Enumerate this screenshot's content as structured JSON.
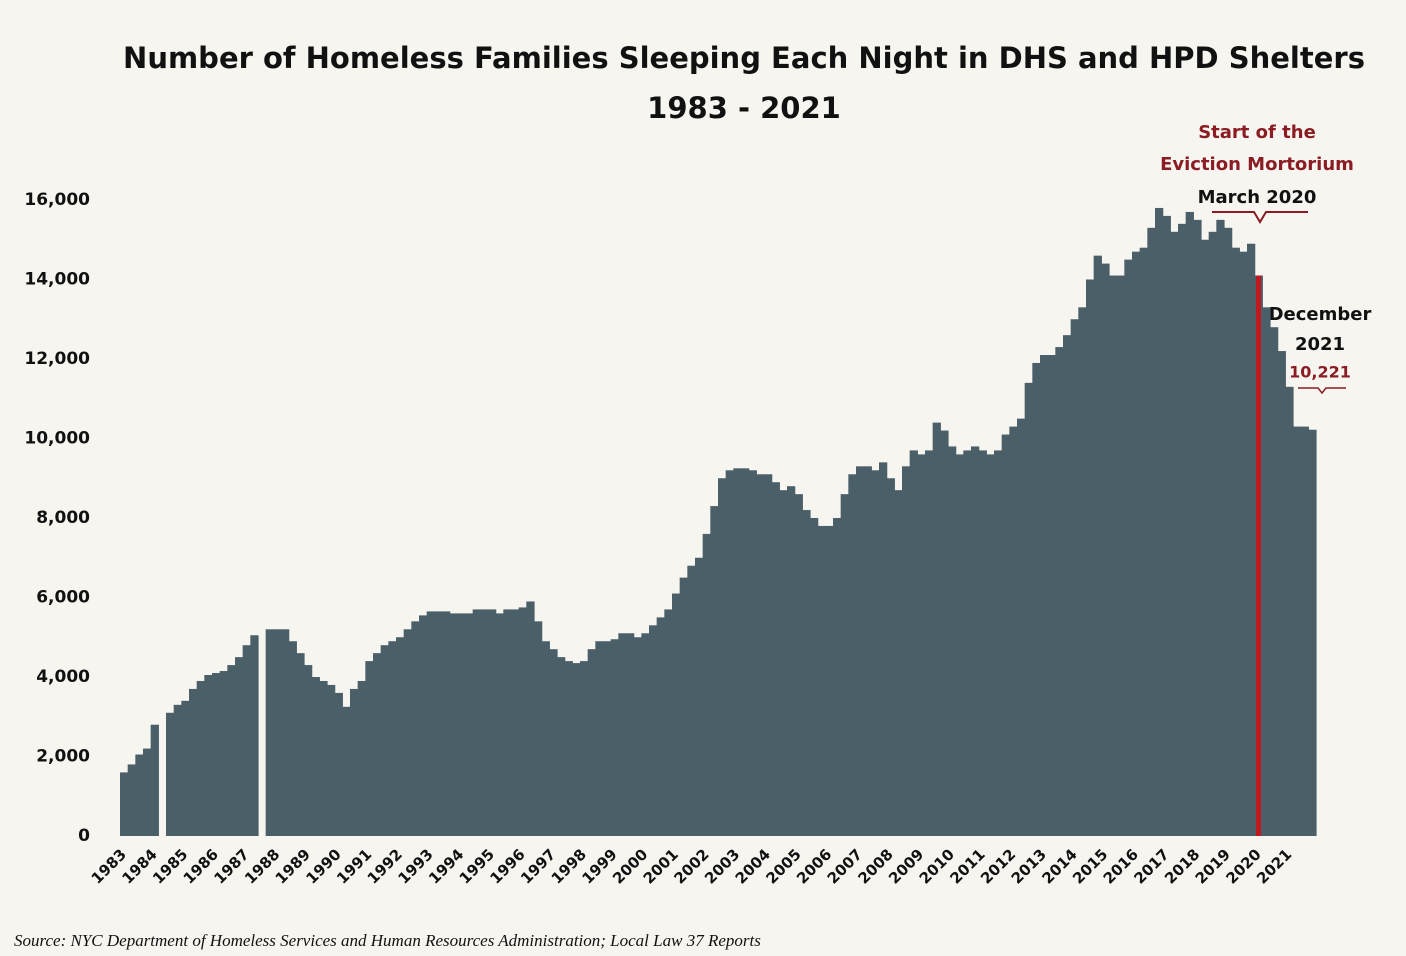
{
  "chart_data": {
    "type": "bar",
    "title": "Number of Homeless Families Sleeping Each Night in DHS and HPD Shelters",
    "subtitle": "1983 - 2021",
    "source": "Source:  NYC Department of Homeless Services and Human Resources Administration;  Local Law 37 Reports",
    "color": "#4b5f69",
    "highlight_index": 148,
    "highlight_color": "#c0181e",
    "categories": [
      "1983",
      null,
      null,
      null,
      "1984",
      null,
      null,
      null,
      "1985",
      null,
      null,
      null,
      "1986",
      null,
      null,
      null,
      "1987",
      null,
      null,
      null,
      "1988",
      null,
      null,
      null,
      "1989",
      null,
      null,
      null,
      "1990",
      null,
      null,
      null,
      "1991",
      null,
      null,
      null,
      "1992",
      null,
      null,
      null,
      "1993",
      null,
      null,
      null,
      "1994",
      null,
      null,
      null,
      "1995",
      null,
      null,
      null,
      "1996",
      null,
      null,
      null,
      "1997",
      null,
      null,
      null,
      "1998",
      null,
      null,
      null,
      "1999",
      null,
      null,
      null,
      "2000",
      null,
      null,
      null,
      "2001",
      null,
      null,
      null,
      "2002",
      null,
      null,
      null,
      "2003",
      null,
      null,
      null,
      "2004",
      null,
      null,
      null,
      "2005",
      null,
      null,
      null,
      "2006",
      null,
      null,
      null,
      "2007",
      null,
      null,
      null,
      "2008",
      null,
      null,
      null,
      "2009",
      null,
      null,
      null,
      "2010",
      null,
      null,
      null,
      "2011",
      null,
      null,
      null,
      "2012",
      null,
      null,
      null,
      "2013",
      null,
      null,
      null,
      "2014",
      null,
      null,
      null,
      "2015",
      null,
      null,
      null,
      "2016",
      null,
      null,
      null,
      "2017",
      null,
      null,
      null,
      "2018",
      null,
      null,
      null,
      "2019",
      null,
      null,
      null,
      "2020",
      null,
      null,
      null,
      "2021",
      null,
      null,
      null
    ],
    "values": [
      1600,
      1800,
      2050,
      2200,
      2800,
      null,
      3100,
      3300,
      3400,
      3700,
      3900,
      4050,
      4100,
      4150,
      4300,
      4500,
      4800,
      5050,
      null,
      5200,
      5200,
      5200,
      4900,
      4600,
      4300,
      4000,
      3900,
      3800,
      3600,
      3250,
      3700,
      3900,
      4400,
      4600,
      4800,
      4900,
      5000,
      5200,
      5400,
      5550,
      5650,
      5650,
      5650,
      5600,
      5600,
      5600,
      5700,
      5700,
      5700,
      5600,
      5700,
      5700,
      5750,
      5900,
      5400,
      4900,
      4700,
      4500,
      4400,
      4350,
      4400,
      4700,
      4900,
      4900,
      4950,
      5100,
      5100,
      5000,
      5100,
      5300,
      5500,
      5700,
      6100,
      6500,
      6800,
      7000,
      7600,
      8300,
      9000,
      9200,
      9250,
      9250,
      9200,
      9100,
      9100,
      8900,
      8700,
      8800,
      8600,
      8200,
      8000,
      7800,
      7800,
      8000,
      8600,
      9100,
      9300,
      9300,
      9200,
      9400,
      9000,
      8700,
      9300,
      9700,
      9600,
      9700,
      10400,
      10200,
      9800,
      9600,
      9700,
      9800,
      9700,
      9600,
      9700,
      10100,
      10300,
      10500,
      11400,
      11900,
      12100,
      12100,
      12300,
      12600,
      13000,
      13300,
      14000,
      14600,
      14400,
      14100,
      14100,
      14500,
      14700,
      14800,
      15300,
      15800,
      15600,
      15200,
      15400,
      15700,
      15500,
      15000,
      15200,
      15500,
      15300,
      14800,
      14700,
      14900,
      14100,
      13300,
      12800,
      12200,
      11300,
      10300,
      10300,
      10221
    ],
    "ylim": [
      0,
      16000
    ],
    "yticks": [
      0,
      {
        "value": 2000,
        "label": "2,000"
      },
      {
        "value": 4000,
        "label": "4,000"
      },
      {
        "value": 6000,
        "label": "6,000"
      },
      {
        "value": 8000,
        "label": "8,000"
      },
      {
        "value": 10000,
        "label": "10,000"
      },
      {
        "value": 12000,
        "label": "12,000"
      },
      {
        "value": 14000,
        "label": "14,000"
      },
      {
        "value": 16000,
        "label": "16,000"
      }
    ],
    "annotations": {
      "event": [
        "Start of the",
        "Eviction Mortorium",
        "March 2020"
      ],
      "last": [
        "December",
        "2021"
      ],
      "last_value_label": "10,221"
    }
  }
}
